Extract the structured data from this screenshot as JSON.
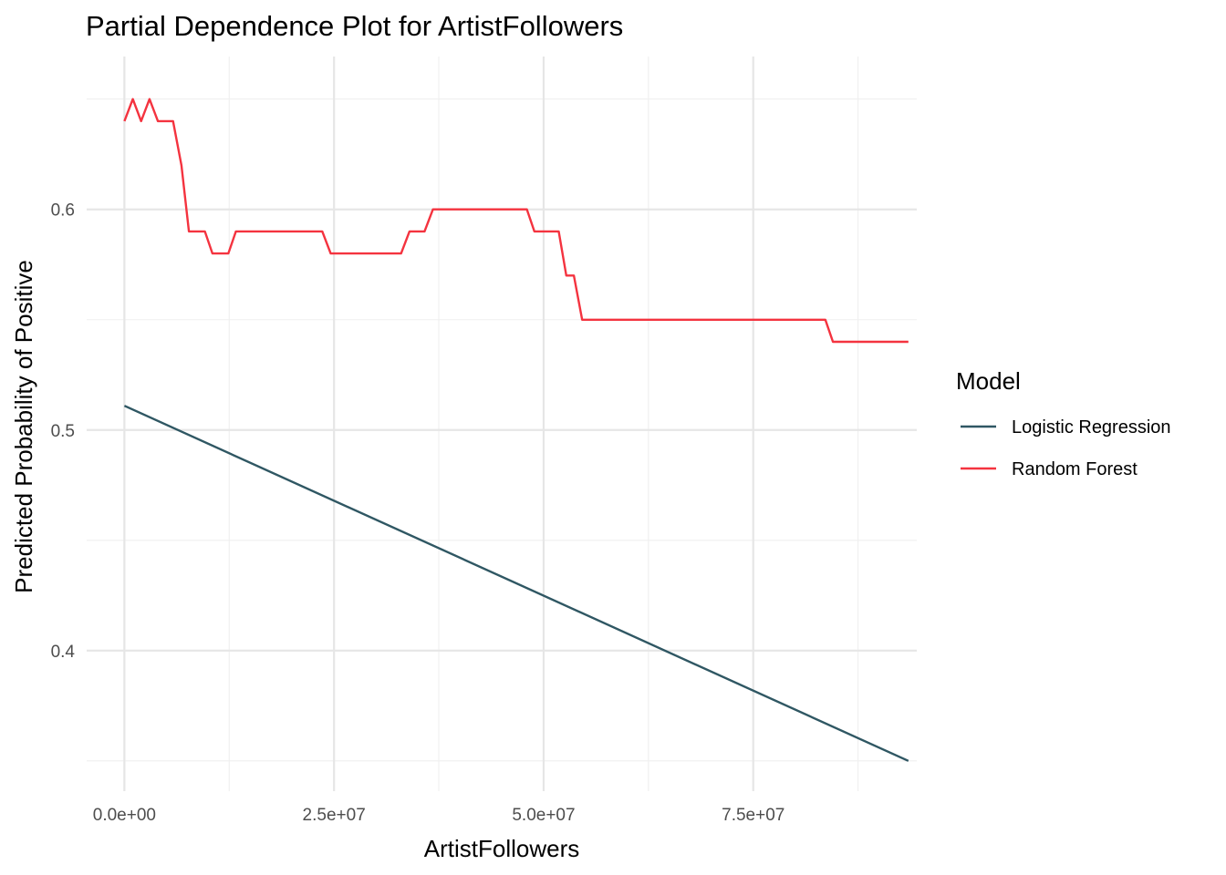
{
  "chart_data": {
    "type": "line",
    "title": "Partial Dependence Plot for ArtistFollowers",
    "xlabel": "ArtistFollowers",
    "ylabel": "Predicted Probability of Positive",
    "xlim": [
      -4500000,
      94500000
    ],
    "ylim": [
      0.3363,
      0.6693
    ],
    "x_ticks": [
      0,
      25000000,
      50000000,
      75000000
    ],
    "x_tick_labels": [
      "0.0e+00",
      "2.5e+07",
      "5.0e+07",
      "7.5e+07"
    ],
    "x_minor_ticks": [
      12500000,
      37500000,
      62500000,
      87500000
    ],
    "y_ticks": [
      0.4,
      0.5,
      0.6
    ],
    "y_tick_labels": [
      "0.4",
      "0.5",
      "0.6"
    ],
    "y_minor_ticks": [
      0.35,
      0.45,
      0.55,
      0.65
    ],
    "grid": true,
    "legend": {
      "title": "Model",
      "placement": "right"
    },
    "series": [
      {
        "name": "Logistic Regression",
        "color": "#2F5763",
        "x": [
          0,
          93500000
        ],
        "y": [
          0.511,
          0.35
        ]
      },
      {
        "name": "Random Forest",
        "color": "#F4333F",
        "x": [
          0,
          1000000,
          2000000,
          3000000,
          4000000,
          5000000,
          5800000,
          6800000,
          7700000,
          8700000,
          9600000,
          10500000,
          11500000,
          12400000,
          13300000,
          14300000,
          15200000,
          16200000,
          17100000,
          18000000,
          19000000,
          19900000,
          20800000,
          21800000,
          22700000,
          23600000,
          24600000,
          25500000,
          26500000,
          27400000,
          28300000,
          29300000,
          30200000,
          31100000,
          32100000,
          33000000,
          34000000,
          34900000,
          35800000,
          36800000,
          37700000,
          38600000,
          39600000,
          40500000,
          41400000,
          42400000,
          43300000,
          44300000,
          45200000,
          46100000,
          47100000,
          48000000,
          48900000,
          49900000,
          50800000,
          51800000,
          52700000,
          53600000,
          54600000,
          55500000,
          56400000,
          57400000,
          58300000,
          59200000,
          60200000,
          61100000,
          62100000,
          63000000,
          63900000,
          64900000,
          65800000,
          66700000,
          67700000,
          68600000,
          69500000,
          70500000,
          71400000,
          72400000,
          73300000,
          74200000,
          75200000,
          76100000,
          77000000,
          78000000,
          78900000,
          79900000,
          80800000,
          81700000,
          82700000,
          83600000,
          84500000,
          85500000,
          86400000,
          87300000,
          88300000,
          89200000,
          90200000,
          91100000,
          92000000,
          93000000,
          93500000
        ],
        "y": [
          0.64,
          0.65,
          0.64,
          0.65,
          0.64,
          0.64,
          0.64,
          0.62,
          0.59,
          0.59,
          0.59,
          0.58,
          0.58,
          0.58,
          0.59,
          0.59,
          0.59,
          0.59,
          0.59,
          0.59,
          0.59,
          0.59,
          0.59,
          0.59,
          0.59,
          0.59,
          0.58,
          0.58,
          0.58,
          0.58,
          0.58,
          0.58,
          0.58,
          0.58,
          0.58,
          0.58,
          0.59,
          0.59,
          0.59,
          0.6,
          0.6,
          0.6,
          0.6,
          0.6,
          0.6,
          0.6,
          0.6,
          0.6,
          0.6,
          0.6,
          0.6,
          0.6,
          0.59,
          0.59,
          0.59,
          0.59,
          0.57,
          0.57,
          0.55,
          0.55,
          0.55,
          0.55,
          0.55,
          0.55,
          0.55,
          0.55,
          0.55,
          0.55,
          0.55,
          0.55,
          0.55,
          0.55,
          0.55,
          0.55,
          0.55,
          0.55,
          0.55,
          0.55,
          0.55,
          0.55,
          0.55,
          0.55,
          0.55,
          0.55,
          0.55,
          0.55,
          0.55,
          0.55,
          0.55,
          0.55,
          0.54,
          0.54,
          0.54,
          0.54,
          0.54,
          0.54,
          0.54,
          0.54,
          0.54,
          0.54,
          0.54
        ]
      }
    ]
  }
}
